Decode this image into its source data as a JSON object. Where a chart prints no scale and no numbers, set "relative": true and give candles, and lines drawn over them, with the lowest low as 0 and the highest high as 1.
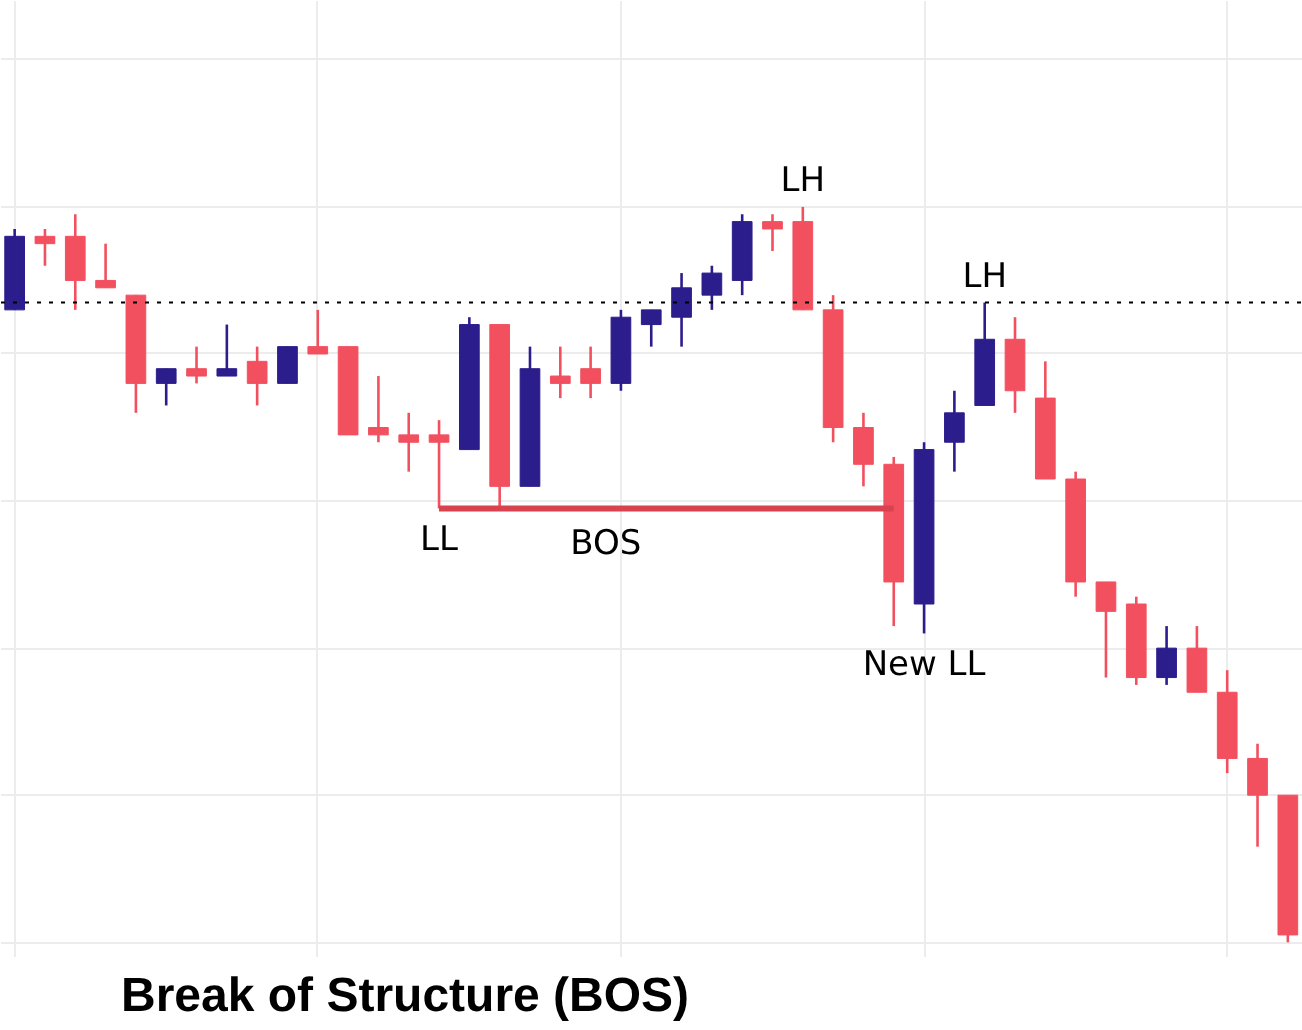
{
  "chart_data": {
    "type": "candlestick",
    "title": "Break of Structure (BOS)",
    "relative": true,
    "grid": true,
    "categories": [
      null,
      null,
      null,
      null,
      null,
      null,
      null,
      null,
      null,
      null,
      null,
      null,
      null,
      null,
      null,
      null,
      null,
      null,
      null,
      null,
      null,
      null,
      null,
      null,
      null,
      null,
      null,
      null,
      null,
      null,
      null,
      null,
      null,
      null,
      null,
      null,
      null,
      null,
      null,
      null,
      null,
      null,
      null
    ],
    "ohlc": [
      [
        0.86,
        0.97,
        0.86,
        0.96
      ],
      [
        0.96,
        0.97,
        0.92,
        0.95
      ],
      [
        0.96,
        0.99,
        0.86,
        0.9
      ],
      [
        0.9,
        0.95,
        0.89,
        0.89
      ],
      [
        0.88,
        0.88,
        0.72,
        0.76
      ],
      [
        0.76,
        0.78,
        0.73,
        0.78
      ],
      [
        0.78,
        0.81,
        0.76,
        0.77
      ],
      [
        0.77,
        0.84,
        0.77,
        0.78
      ],
      [
        0.79,
        0.81,
        0.73,
        0.76
      ],
      [
        0.76,
        0.81,
        0.76,
        0.81
      ],
      [
        0.81,
        0.86,
        0.8,
        0.8
      ],
      [
        0.81,
        0.81,
        0.69,
        0.69
      ],
      [
        0.7,
        0.77,
        0.68,
        0.69
      ],
      [
        0.69,
        0.72,
        0.64,
        0.68
      ],
      [
        0.69,
        0.71,
        0.59,
        0.68
      ],
      [
        0.67,
        0.85,
        0.67,
        0.84
      ],
      [
        0.84,
        0.84,
        0.59,
        0.62
      ],
      [
        0.62,
        0.81,
        0.62,
        0.78
      ],
      [
        0.77,
        0.81,
        0.74,
        0.76
      ],
      [
        0.78,
        0.81,
        0.74,
        0.76
      ],
      [
        0.76,
        0.86,
        0.75,
        0.85
      ],
      [
        0.84,
        0.86,
        0.81,
        0.86
      ],
      [
        0.85,
        0.91,
        0.81,
        0.89
      ],
      [
        0.88,
        0.92,
        0.86,
        0.91
      ],
      [
        0.9,
        0.99,
        0.88,
        0.98
      ],
      [
        0.98,
        0.99,
        0.94,
        0.97
      ],
      [
        0.98,
        1.0,
        0.86,
        0.86
      ],
      [
        0.86,
        0.88,
        0.68,
        0.7
      ],
      [
        0.7,
        0.72,
        0.62,
        0.65
      ],
      [
        0.65,
        0.66,
        0.43,
        0.49
      ],
      [
        0.46,
        0.68,
        0.42,
        0.67
      ],
      [
        0.68,
        0.75,
        0.64,
        0.72
      ],
      [
        0.73,
        0.87,
        0.73,
        0.82
      ],
      [
        0.82,
        0.85,
        0.72,
        0.75
      ],
      [
        0.74,
        0.79,
        0.63,
        0.63
      ],
      [
        0.63,
        0.64,
        0.47,
        0.49
      ],
      [
        0.49,
        0.49,
        0.36,
        0.45
      ],
      [
        0.46,
        0.47,
        0.35,
        0.36
      ],
      [
        0.36,
        0.43,
        0.35,
        0.4
      ],
      [
        0.4,
        0.43,
        0.34,
        0.34
      ],
      [
        0.34,
        0.37,
        0.23,
        0.25
      ],
      [
        0.25,
        0.27,
        0.13,
        0.2
      ],
      [
        0.2,
        0.2,
        0.0,
        0.01
      ]
    ],
    "colors": [
      "#2c1d8c",
      "#f2505f",
      "#f2505f",
      "#f2505f",
      "#f2505f",
      "#2c1d8c",
      "#f2505f",
      "#2c1d8c",
      "#f2505f",
      "#2c1d8c",
      "#f2505f",
      "#f2505f",
      "#f2505f",
      "#f2505f",
      "#f2505f",
      "#2c1d8c",
      "#f2505f",
      "#2c1d8c",
      "#f2505f",
      "#f2505f",
      "#2c1d8c",
      "#2c1d8c",
      "#2c1d8c",
      "#2c1d8c",
      "#2c1d8c",
      "#f2505f",
      "#f2505f",
      "#f2505f",
      "#f2505f",
      "#f2505f",
      "#2c1d8c",
      "#2c1d8c",
      "#2c1d8c",
      "#f2505f",
      "#f2505f",
      "#f2505f",
      "#f2505f",
      "#f2505f",
      "#2c1d8c",
      "#f2505f",
      "#f2505f",
      "#f2505f",
      "#f2505f"
    ],
    "series": [
      {
        "type": "line",
        "name": "BOS",
        "color": "#d9434f",
        "values": [
          null,
          null,
          null,
          null,
          null,
          null,
          null,
          null,
          null,
          null,
          null,
          null,
          null,
          null,
          0.59,
          0.59,
          0.59,
          0.59,
          0.59,
          0.59,
          0.59,
          0.59,
          0.59,
          0.59,
          0.59,
          0.59,
          0.59,
          0.59,
          0.59,
          0.59,
          null,
          null,
          null,
          null,
          null,
          null,
          null,
          null,
          null,
          null,
          null,
          null,
          null
        ]
      }
    ],
    "ref_lines": [
      {
        "axis": "y",
        "value": 0.87,
        "color": "#000000",
        "line_style": "dotted"
      }
    ],
    "annotations": [
      {
        "text": "LH",
        "y": 1.0
      },
      {
        "text": "LH",
        "y": 0.87
      },
      {
        "text": "LL",
        "y": 0.59
      },
      {
        "text": "New LL",
        "y": 0.42
      }
    ]
  }
}
